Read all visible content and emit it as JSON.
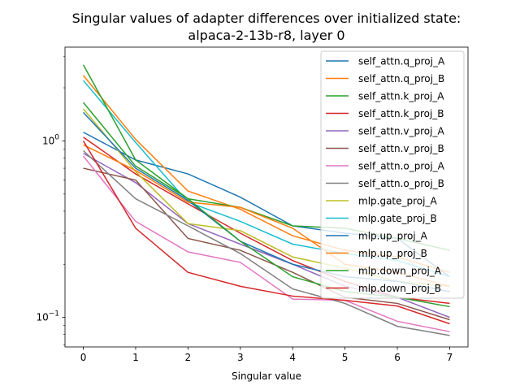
{
  "chart_data": {
    "type": "line",
    "title_line1": "Singular values of adapter differences over initialized state:",
    "title_line2": "alpaca-2-13b-r8, layer 0",
    "xlabel": "Singular value",
    "ylabel": "",
    "yscale": "log",
    "xlim": [
      -0.35,
      7.35
    ],
    "ylim": [
      0.068,
      3.4
    ],
    "x": [
      0,
      1,
      2,
      3,
      4,
      5,
      6,
      7
    ],
    "x_ticks": [
      "0",
      "1",
      "2",
      "3",
      "4",
      "5",
      "6",
      "7"
    ],
    "y_ticks": [
      {
        "value": 1.0,
        "label": "10^0"
      },
      {
        "value": 0.1,
        "label": "10^-1"
      }
    ],
    "legend_position": "upper right",
    "series": [
      {
        "name": "self_attn.q_proj_A",
        "color": "#1f77b4",
        "values": [
          1.12,
          0.78,
          0.65,
          0.48,
          0.33,
          0.3,
          0.28,
          0.17
        ]
      },
      {
        "name": "self_attn.q_proj_B",
        "color": "#ff7f0e",
        "values": [
          2.35,
          1.02,
          0.52,
          0.41,
          0.29,
          0.24,
          0.22,
          0.18
        ]
      },
      {
        "name": "self_attn.k_proj_A",
        "color": "#2ca02c",
        "values": [
          1.65,
          0.72,
          0.47,
          0.42,
          0.33,
          0.32,
          0.28,
          0.24
        ]
      },
      {
        "name": "self_attn.k_proj_B",
        "color": "#d62728",
        "values": [
          1.05,
          0.65,
          0.44,
          0.3,
          0.21,
          0.16,
          0.13,
          0.12
        ]
      },
      {
        "name": "self_attn.v_proj_A",
        "color": "#9467bd",
        "values": [
          0.85,
          0.58,
          0.34,
          0.26,
          0.2,
          0.15,
          0.13,
          0.1
        ]
      },
      {
        "name": "self_attn.v_proj_B",
        "color": "#8c564b",
        "values": [
          0.7,
          0.6,
          0.28,
          0.24,
          0.18,
          0.13,
          0.12,
          0.097
        ]
      },
      {
        "name": "self_attn.o_proj_A",
        "color": "#e377c2",
        "values": [
          0.82,
          0.35,
          0.235,
          0.205,
          0.127,
          0.125,
          0.095,
          0.083
        ]
      },
      {
        "name": "self_attn.o_proj_B",
        "color": "#7f7f7f",
        "values": [
          0.88,
          0.47,
          0.33,
          0.23,
          0.145,
          0.12,
          0.089,
          0.079
        ]
      },
      {
        "name": "mlp.gate_proj_A",
        "color": "#bcbd22",
        "values": [
          1.52,
          0.67,
          0.34,
          0.31,
          0.22,
          0.19,
          0.16,
          0.15
        ]
      },
      {
        "name": "mlp.gate_proj_B",
        "color": "#17becf",
        "values": [
          2.2,
          0.98,
          0.45,
          0.35,
          0.26,
          0.23,
          0.21,
          0.17
        ]
      },
      {
        "name": "mlp.up_proj_A",
        "color": "#1f77b4",
        "values": [
          1.45,
          0.7,
          0.46,
          0.27,
          0.2,
          0.17,
          0.16,
          0.14
        ]
      },
      {
        "name": "mlp.up_proj_B",
        "color": "#ff7f0e",
        "values": [
          0.95,
          0.68,
          0.45,
          0.42,
          0.32,
          0.2,
          0.18,
          0.15
        ]
      },
      {
        "name": "mlp.down_proj_A",
        "color": "#2ca02c",
        "values": [
          2.7,
          0.78,
          0.47,
          0.27,
          0.17,
          0.14,
          0.13,
          0.115
        ]
      },
      {
        "name": "mlp.down_proj_B",
        "color": "#d62728",
        "values": [
          1.0,
          0.32,
          0.18,
          0.15,
          0.132,
          0.125,
          0.116,
          0.092
        ]
      }
    ]
  }
}
